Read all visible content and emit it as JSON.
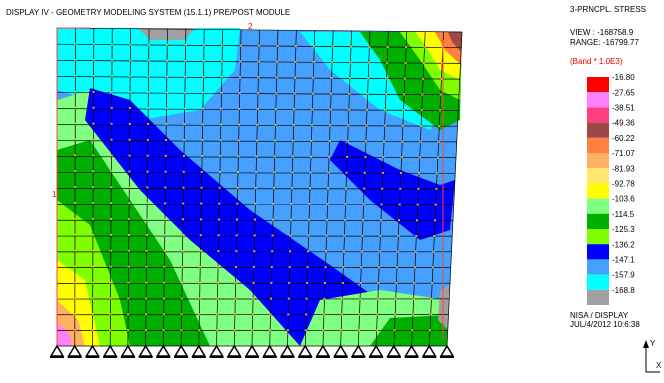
{
  "header": {
    "title": "DISPLAY IV  - GEOMETRY MODELING SYSTEM (15.1.1)  PRE/POST MODULE"
  },
  "legend": {
    "title": "3-PRNCPL. STRESS",
    "view": "VIEW : -168758.9",
    "range": "RANGE: -16799.77",
    "band": "(Band * 1.0E3)",
    "items": [
      {
        "label": "-16.80",
        "color": "#ff0000"
      },
      {
        "label": "-27.65",
        "color": "#ff80ff"
      },
      {
        "label": "-38.51",
        "color": "#ff4080"
      },
      {
        "label": "-49.36",
        "color": "#a04848"
      },
      {
        "label": "-60.22",
        "color": "#ff8040"
      },
      {
        "label": "-71.07",
        "color": "#ffb060"
      },
      {
        "label": "-81.93",
        "color": "#ffe870"
      },
      {
        "label": "-92.78",
        "color": "#ffff00"
      },
      {
        "label": "-103.6",
        "color": "#80ff80"
      },
      {
        "label": "-114.5",
        "color": "#00b000"
      },
      {
        "label": "-125.3",
        "color": "#80ff00"
      },
      {
        "label": "-136.2",
        "color": "#0000ff"
      },
      {
        "label": "-147.1",
        "color": "#46a0ff"
      },
      {
        "label": "-157.9",
        "color": "#00ffff"
      },
      {
        "label": "-168.8",
        "color": "#a0a0a0"
      }
    ]
  },
  "footer": {
    "program": "NISA / DISPLAY",
    "timestamp": "JUL/4/2012  10:6:38"
  },
  "model": {
    "node_labels": [
      "1",
      "2"
    ]
  },
  "axes": {
    "y": "Y",
    "x": "X"
  }
}
